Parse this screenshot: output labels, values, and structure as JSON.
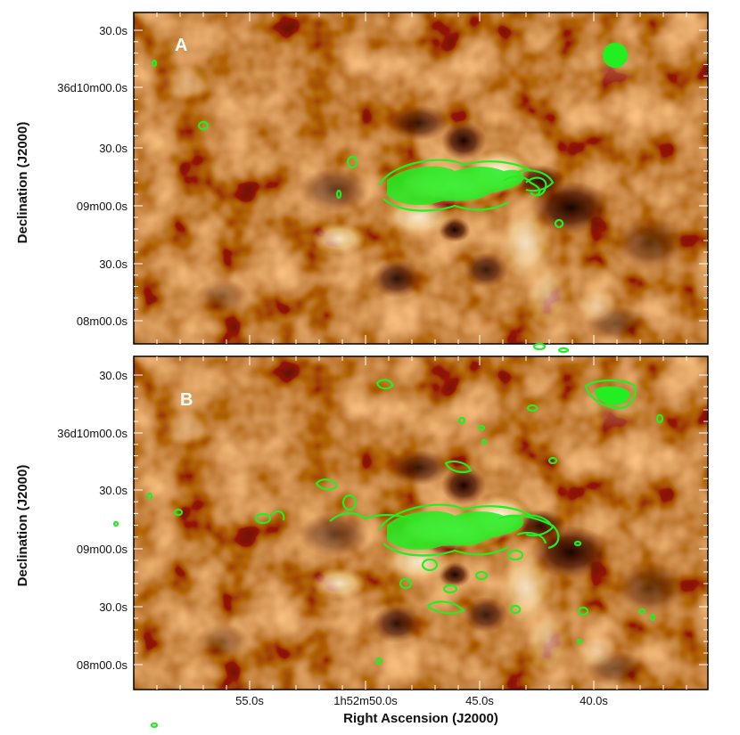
{
  "figure": {
    "x_axis_title": "Right Ascension (J2000)",
    "y_axis_title": "Declination (J2000)",
    "x_tick_labels": [
      "55.0s",
      "1h52m50.0s",
      "45.0s",
      "40.0s"
    ],
    "y_tick_labels": [
      "30.0s",
      "36d10m00.0s",
      "30.0s",
      "09m00.0s",
      "30.0s",
      "08m00.0s"
    ],
    "colors": {
      "background_map_bright": "#fff4d8",
      "background_map_mid": "#e08a2a",
      "background_map_dark": "#3a0c00",
      "contour": "#22ee22"
    }
  },
  "panels": [
    {
      "letter": "A"
    },
    {
      "letter": "B"
    }
  ]
}
